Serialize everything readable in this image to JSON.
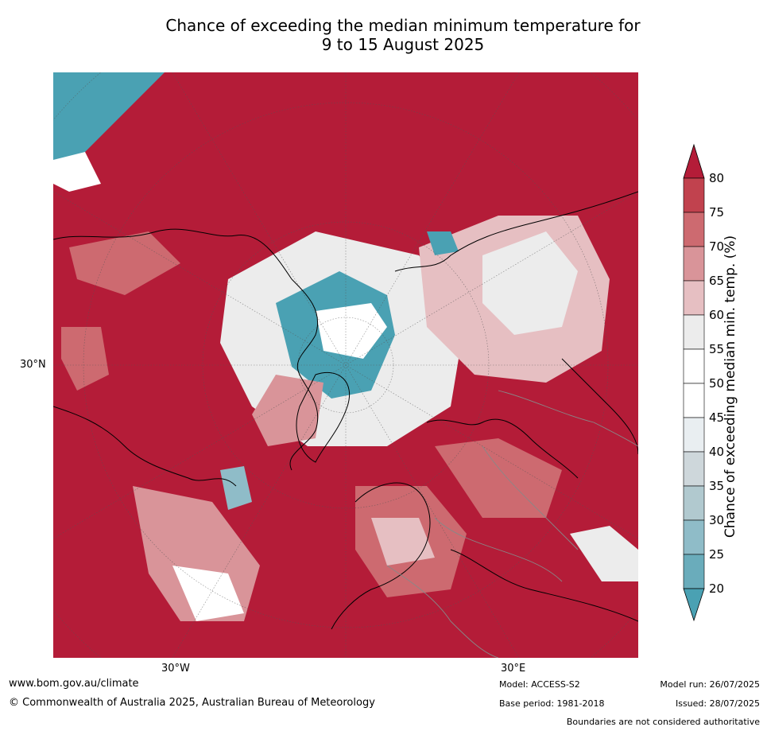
{
  "title": {
    "line1": "Chance of exceeding the median minimum temperature for",
    "line2": "9 to 15 August 2025"
  },
  "map": {
    "lat_label": "30°N",
    "lon_labels": [
      "30°W",
      "30°E"
    ]
  },
  "colorbar": {
    "title": "Chance of exceeding median min. temp. (%)",
    "ticks": [
      "80",
      "75",
      "70",
      "65",
      "60",
      "55",
      "50",
      "45",
      "40",
      "35",
      "30",
      "25",
      "20"
    ],
    "colors": [
      "#b41c38",
      "#c1424e",
      "#cd6a70",
      "#d99499",
      "#e6bfc2",
      "#ececec",
      "#ffffff",
      "#ffffff",
      "#e9eef1",
      "#ced7db",
      "#b1c9cf",
      "#8fbcc8",
      "#6aacbb",
      "#4aa1b3"
    ]
  },
  "footer": {
    "website": "www.bom.gov.au/climate",
    "copyright": "© Commonwealth of Australia 2025, Australian Bureau of Meteorology",
    "model": "Model: ACCESS-S2",
    "base_period": "Base period: 1981-2018",
    "model_run": "Model run: 26/07/2025",
    "issued": "Issued: 28/07/2025",
    "boundaries": "Boundaries are not considered authoritative"
  }
}
